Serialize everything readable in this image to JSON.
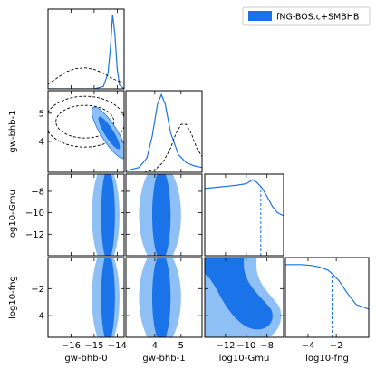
{
  "colors": {
    "primary": "#1a73e8",
    "fill_dark": "#1a73e8",
    "fill_light": "#8ec0f5",
    "reference": "#000000"
  },
  "legend": {
    "label": "fNG-BOS.c+SMBHB",
    "position": "top-right"
  },
  "chart_data": {
    "type": "corner",
    "parameters": [
      {
        "name": "gw-bhb-0",
        "range": [
          -17,
          -13.7
        ],
        "ticks": [
          -16,
          -15,
          -14
        ],
        "tick_labels": [
          "−16",
          "−15",
          "−14"
        ]
      },
      {
        "name": "gw-bhb-1",
        "range": [
          2.9,
          5.8
        ],
        "ticks": [
          4,
          5
        ],
        "tick_labels": [
          "4",
          "5"
        ]
      },
      {
        "name": "log10-Gmu",
        "range": [
          -14,
          -6.4
        ],
        "ticks": [
          -12,
          -10,
          -8
        ],
        "tick_labels": [
          "−12",
          "−10",
          "−8"
        ]
      },
      {
        "name": "log10-fng",
        "range": [
          -5.6,
          0.3
        ],
        "ticks": [
          -4,
          -2
        ],
        "tick_labels": [
          "−4",
          "−2"
        ]
      }
    ],
    "y_ticks": {
      "gw-bhb-1": {
        "ticks": [
          4,
          5
        ],
        "tick_labels": [
          "4",
          "5"
        ]
      },
      "log10-Gmu": {
        "ticks": [
          -12,
          -10,
          -8
        ],
        "tick_labels": [
          "−12",
          "−10",
          "−8"
        ]
      },
      "log10-fng": {
        "ticks": [
          -4,
          -2
        ],
        "tick_labels": [
          "−4",
          "−2"
        ]
      }
    },
    "series": [
      {
        "name": "fNG-BOS.c+SMBHB",
        "style": "solid",
        "marginals": {
          "gw-bhb-0": {
            "x": [
              -17,
              -15,
              -14.6,
              -14.4,
              -14.3,
              -14.2,
              -14.1,
              -14.0,
              -13.9,
              -13.7
            ],
            "y": [
              0,
              0,
              0.03,
              0.2,
              0.5,
              0.95,
              0.7,
              0.25,
              0.05,
              0
            ]
          },
          "gw-bhb-1": {
            "x": [
              2.9,
              3.4,
              3.7,
              3.9,
              4.1,
              4.25,
              4.4,
              4.6,
              4.9,
              5.2,
              5.5,
              5.8
            ],
            "y": [
              0.02,
              0.06,
              0.18,
              0.45,
              0.85,
              0.97,
              0.85,
              0.5,
              0.22,
              0.12,
              0.08,
              0.06
            ]
          },
          "log10-Gmu": {
            "x": [
              -14,
              -12.5,
              -11,
              -10,
              -9.4,
              -9,
              -8.5,
              -8,
              -7.5,
              -7,
              -6.4
            ],
            "y": [
              0.84,
              0.86,
              0.88,
              0.9,
              0.95,
              0.92,
              0.85,
              0.74,
              0.62,
              0.54,
              0.5
            ]
          },
          "log10-fng": {
            "x": [
              -5.6,
              -4.5,
              -3.8,
              -3.2,
              -2.6,
              -2.2,
              -1.8,
              -1.2,
              -0.6,
              0,
              0.3
            ],
            "y": [
              0.93,
              0.93,
              0.92,
              0.9,
              0.86,
              0.8,
              0.72,
              0.56,
              0.42,
              0.38,
              0.36
            ]
          }
        },
        "upper_limits": {
          "log10-Gmu": -8.6,
          "log10-fng": -2.3
        },
        "contours_2d": {
          "gw-bhb-0|gw-bhb-1": {
            "center": [
              -14.35,
              4.3
            ],
            "orientation": "negative correlation",
            "levels": [
              0.68,
              0.95
            ]
          },
          "gw-bhb-0|log10-Gmu": {
            "center": [
              -14.4,
              -10.2
            ],
            "x_extent_68": [
              -14.7,
              -14.1
            ],
            "x_extent_95": [
              -15.1,
              -13.9
            ]
          },
          "gw-bhb-1|log10-Gmu": {
            "center": [
              4.2,
              -10.2
            ],
            "x_extent_68": [
              3.9,
              4.6
            ],
            "x_extent_95": [
              3.4,
              5.0
            ]
          },
          "gw-bhb-0|log10-fng": {
            "center": [
              -14.4,
              -2.8
            ],
            "x_extent_68": [
              -14.7,
              -14.1
            ],
            "x_extent_95": [
              -15.1,
              -13.9
            ]
          },
          "gw-bhb-1|log10-fng": {
            "center": [
              4.2,
              -2.8
            ],
            "x_extent_68": [
              3.9,
              4.6
            ],
            "x_extent_95": [
              3.4,
              5.0
            ]
          },
          "log10-Gmu|log10-fng": {
            "note": "allowed region at low Gmu and low fng; excluded upper-right corner"
          }
        }
      },
      {
        "name": "",
        "style": "dashed",
        "marginals": {
          "gw-bhb-0": {
            "x": [
              -17,
              -16.6,
              -16.2,
              -15.8,
              -15.4,
              -15.0,
              -14.6,
              -14.2,
              -13.7
            ],
            "y": [
              0.06,
              0.14,
              0.22,
              0.26,
              0.27,
              0.25,
              0.2,
              0.13,
              0.07
            ]
          },
          "gw-bhb-1": {
            "x": [
              2.9,
              3.6,
              4.0,
              4.3,
              4.6,
              4.8,
              5.0,
              5.2,
              5.4,
              5.6,
              5.8
            ],
            "y": [
              0,
              0,
              0.03,
              0.12,
              0.3,
              0.48,
              0.6,
              0.6,
              0.48,
              0.3,
              0.2
            ]
          }
        },
        "contours_2d": {
          "gw-bhb-0|gw-bhb-1": {
            "center": [
              -15.4,
              4.7
            ],
            "levels": [
              0.68,
              0.95
            ]
          }
        }
      }
    ]
  }
}
